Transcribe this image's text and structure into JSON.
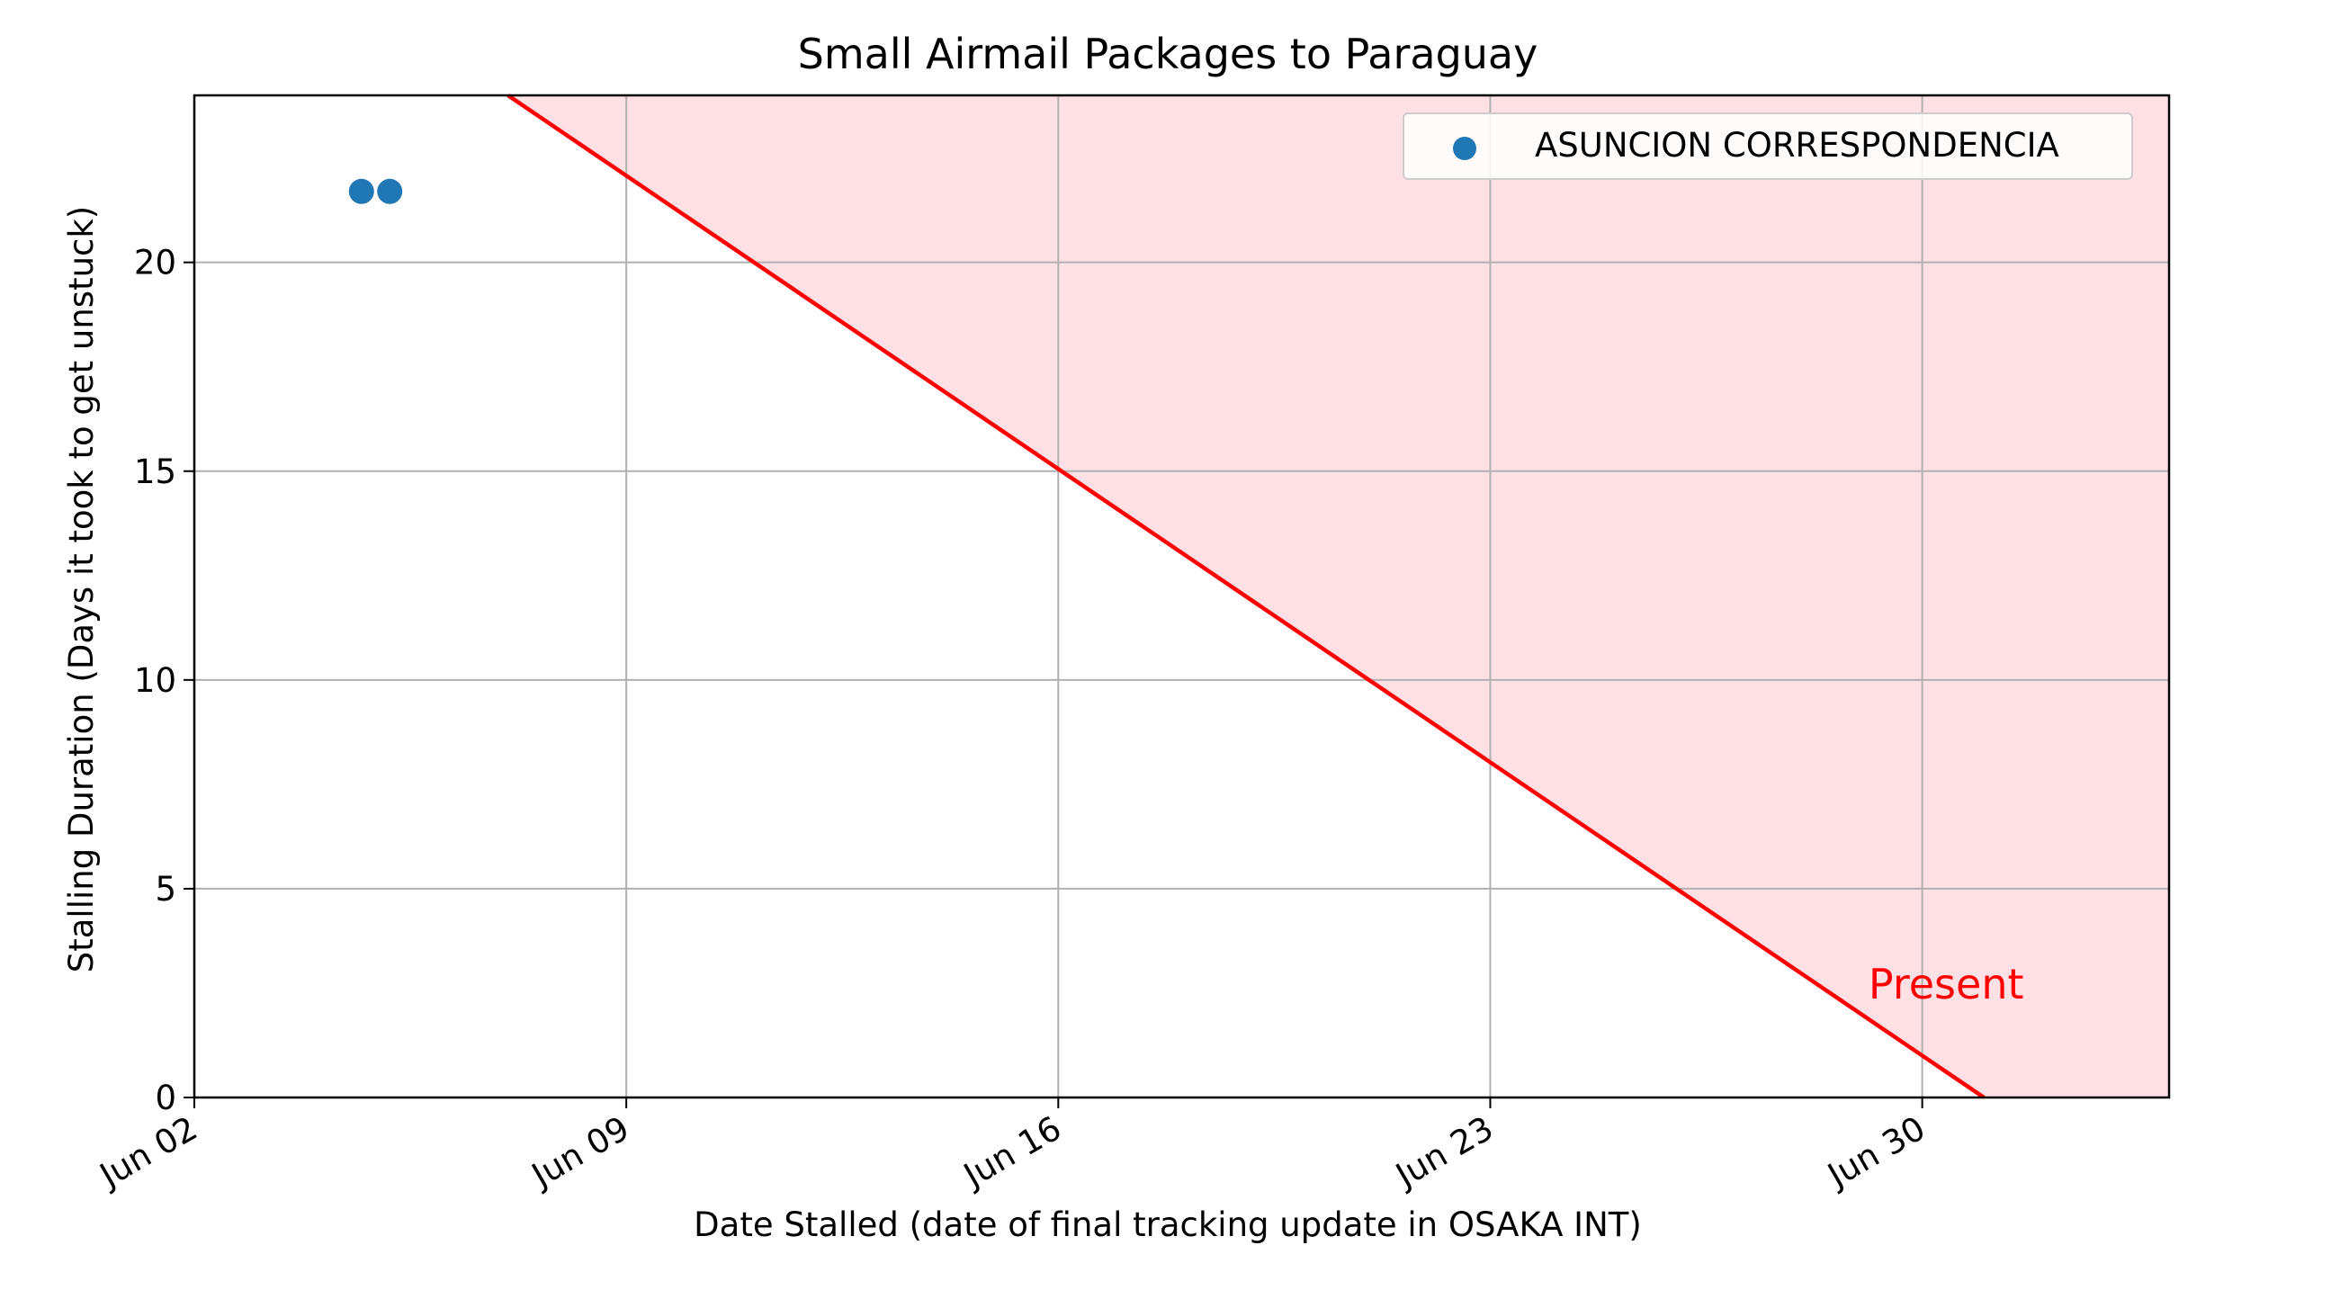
{
  "chart_data": {
    "type": "scatter",
    "title": "Small Airmail Packages to Paraguay",
    "xlabel": "Date Stalled (date of final tracking update in OSAKA INT)",
    "ylabel": "Stalling Duration (Days it took to get unstuck)",
    "x_type": "date",
    "xlim": [
      "2024-06-02",
      "2024-07-04"
    ],
    "ylim": [
      0,
      24
    ],
    "x_ticks": [
      {
        "date": "2024-06-02",
        "label": "Jun 02"
      },
      {
        "date": "2024-06-09",
        "label": "Jun 09"
      },
      {
        "date": "2024-06-16",
        "label": "Jun 16"
      },
      {
        "date": "2024-06-23",
        "label": "Jun 23"
      },
      {
        "date": "2024-06-30",
        "label": "Jun 30"
      }
    ],
    "y_ticks": [
      0,
      5,
      10,
      15,
      20
    ],
    "grid": true,
    "legend_position": "top-right",
    "series": [
      {
        "name": "ASUNCION CORRESPONDENCIA",
        "color": "#1f77b4",
        "points": [
          {
            "x": "2024-06-04T17:00",
            "y": 21.7
          },
          {
            "x": "2024-06-05T04:00",
            "y": 21.7
          }
        ]
      }
    ],
    "present_line": {
      "label": "Present",
      "color": "#ff0000",
      "shade_color": "#ffe0e4",
      "points": [
        {
          "x": "2024-06-07T02:00",
          "y": 24
        },
        {
          "x": "2024-07-01",
          "y": 0
        }
      ]
    }
  }
}
